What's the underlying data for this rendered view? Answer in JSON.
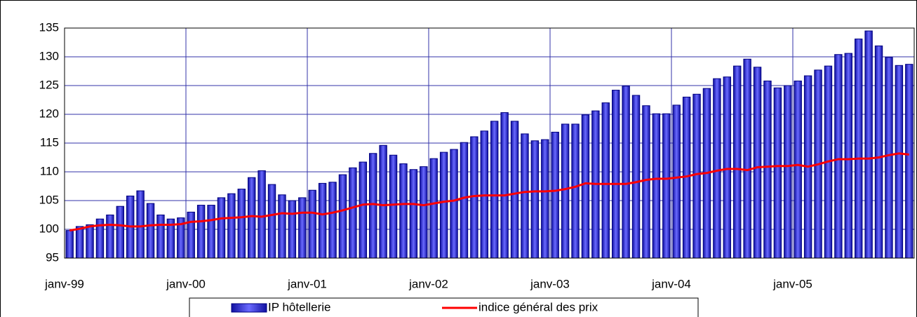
{
  "chart_data": {
    "type": "bar",
    "categories": [
      "janv-99",
      null,
      null,
      null,
      null,
      null,
      null,
      null,
      null,
      null,
      null,
      null,
      "janv-00",
      null,
      null,
      null,
      null,
      null,
      null,
      null,
      null,
      null,
      null,
      null,
      "janv-01",
      null,
      null,
      null,
      null,
      null,
      null,
      null,
      null,
      null,
      null,
      null,
      "janv-02",
      null,
      null,
      null,
      null,
      null,
      null,
      null,
      null,
      null,
      null,
      null,
      "janv-03",
      null,
      null,
      null,
      null,
      null,
      null,
      null,
      null,
      null,
      null,
      null,
      "janv-04",
      null,
      null,
      null,
      null,
      null,
      null,
      null,
      null,
      null,
      null,
      null,
      "janv-05",
      null,
      null,
      null,
      null,
      null,
      null,
      null,
      null,
      null,
      null,
      null
    ],
    "series": [
      {
        "name": "IP hôtellerie",
        "type": "bar",
        "color": "#2a2ae6",
        "values": [
          99.8,
          100.5,
          100.8,
          101.8,
          102.5,
          104,
          105.8,
          106.7,
          104.5,
          102.5,
          101.8,
          102,
          103,
          104.2,
          104.2,
          105.5,
          106.2,
          107,
          109,
          110.2,
          107.8,
          106,
          105,
          105.5,
          106.8,
          108,
          108.2,
          109.5,
          110.7,
          111.7,
          113.2,
          114.6,
          112.9,
          111.4,
          110.4,
          110.9,
          112.3,
          113.4,
          113.9,
          115.1,
          116.1,
          117.1,
          118.8,
          120.3,
          118.8,
          116.6,
          115.4,
          115.6,
          116.9,
          118.3,
          118.3,
          119.9,
          120.6,
          122,
          124.2,
          124.9,
          123.3,
          121.5,
          120.1,
          120.1,
          121.6,
          123,
          123.5,
          124.5,
          126.2,
          126.5,
          128.4,
          129.6,
          128.2,
          125.8,
          124.6,
          125,
          125.8,
          126.7,
          127.7,
          128.4,
          130.4,
          130.6,
          133.1,
          134.5,
          131.9,
          129.9,
          128.5,
          128.7
        ]
      },
      {
        "name": "indice général des prix",
        "type": "line",
        "color": "#ff0000",
        "values": [
          99.8,
          100.1,
          100.5,
          100.7,
          100.8,
          100.7,
          100.5,
          100.5,
          100.7,
          100.8,
          100.8,
          100.9,
          101.3,
          101.4,
          101.6,
          101.9,
          102,
          102.1,
          102.3,
          102.2,
          102.5,
          102.8,
          102.7,
          102.9,
          102.9,
          102.6,
          102.9,
          103.3,
          103.8,
          104.3,
          104.4,
          104.2,
          104.3,
          104.4,
          104.4,
          104.2,
          104.5,
          104.8,
          105,
          105.5,
          105.8,
          105.9,
          105.9,
          105.9,
          106.2,
          106.5,
          106.6,
          106.6,
          106.7,
          107,
          107.4,
          108,
          107.9,
          107.9,
          107.9,
          107.9,
          108.2,
          108.6,
          108.8,
          108.8,
          109,
          109.2,
          109.6,
          109.8,
          110.2,
          110.5,
          110.5,
          110.3,
          110.8,
          110.9,
          111,
          111,
          111.2,
          110.9,
          111.3,
          111.8,
          112.2,
          112.2,
          112.3,
          112.3,
          112.5,
          112.9,
          113.2,
          113
        ]
      }
    ],
    "ylim": [
      95,
      135
    ],
    "yticks": [
      95,
      100,
      105,
      110,
      115,
      120,
      125,
      130,
      135
    ],
    "grid": true,
    "legend": "bottom"
  }
}
